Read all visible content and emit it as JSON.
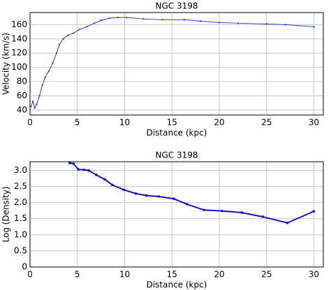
{
  "chart_data": [
    {
      "type": "line",
      "title": "NGC 3198",
      "x_label": "Distance (kpc)",
      "y_label": "Velocity (km/s)",
      "x": [
        0.1,
        0.3,
        0.5,
        0.7,
        1.0,
        1.3,
        1.6,
        2.0,
        2.4,
        2.8,
        3.1,
        3.5,
        4.0,
        4.6,
        5.2,
        6.0,
        6.8,
        7.5,
        8.4,
        9.3,
        10.2,
        12,
        14,
        16.3,
        18,
        20,
        22,
        25,
        27,
        30
      ],
      "series": [
        {
          "name": "Velocity",
          "color": "#3a3ad0",
          "values": [
            45,
            52,
            43,
            48,
            60,
            75,
            86,
            95,
            106,
            120,
            132,
            140,
            145,
            148,
            153,
            157,
            162,
            166,
            169,
            170,
            170,
            168,
            167,
            167,
            165,
            163,
            162,
            161,
            160,
            157
          ]
        }
      ],
      "xlim": [
        0,
        31
      ],
      "xticks": [
        0,
        5,
        10,
        15,
        20,
        25,
        30
      ],
      "ylim": [
        33,
        177
      ],
      "yticks": [
        40,
        60,
        80,
        100,
        120,
        140,
        160
      ],
      "grid": true
    },
    {
      "type": "line",
      "title": "NGC 3198",
      "x_label": "Distance (kpc)",
      "y_label": "Log (Density)",
      "x": [
        4.2,
        4.6,
        5.1,
        5.7,
        6.2,
        7.0,
        7.9,
        8.7,
        9.9,
        11.2,
        12.3,
        13.6,
        15.2,
        16.6,
        18.4,
        20.3,
        22.4,
        24.6,
        27.2,
        30.0
      ],
      "series": [
        {
          "name": "Density",
          "color": "#1414c4",
          "values": [
            3.23,
            3.21,
            3.03,
            3.02,
            3.0,
            2.86,
            2.72,
            2.55,
            2.4,
            2.28,
            2.22,
            2.19,
            2.12,
            1.95,
            1.77,
            1.74,
            1.69,
            1.56,
            1.37,
            1.73
          ]
        }
      ],
      "xlim": [
        0,
        31
      ],
      "xticks": [
        0,
        5,
        10,
        15,
        20,
        25,
        30
      ],
      "ylim": [
        0,
        3.27
      ],
      "yticks": [
        0,
        {
          "value": 0.5,
          "label": "0.5"
        },
        {
          "value": 1,
          "label": "1.0"
        },
        1.5,
        {
          "value": 2,
          "label": "2.0"
        },
        2.5,
        {
          "value": 3,
          "label": "3.0"
        }
      ],
      "grid": true
    }
  ]
}
